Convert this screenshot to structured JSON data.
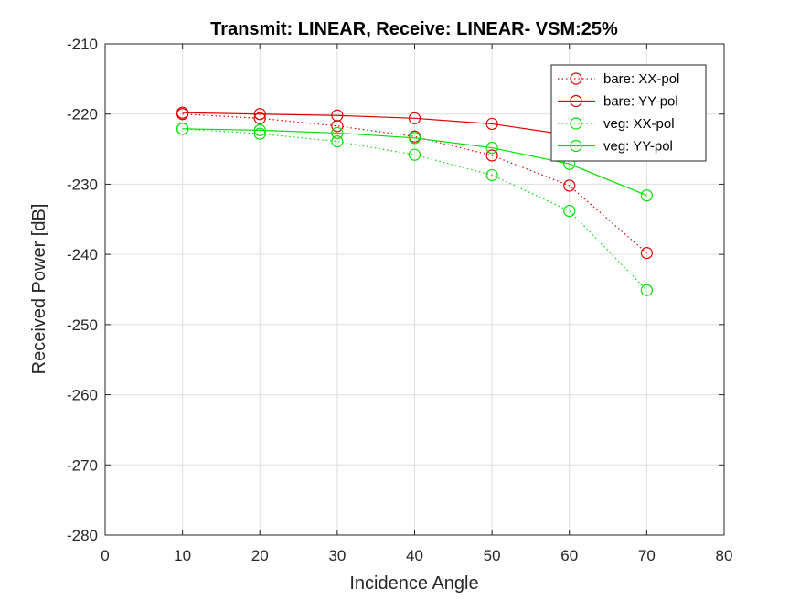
{
  "chart_data": {
    "type": "line",
    "title": "Transmit: LINEAR, Receive: LINEAR- VSM:25%",
    "xlabel": "Incidence Angle",
    "ylabel": "Received Power [dB]",
    "xlim": [
      0,
      80
    ],
    "ylim": [
      -280,
      -210
    ],
    "xticks": [
      0,
      10,
      20,
      30,
      40,
      50,
      60,
      70,
      80
    ],
    "yticks": [
      -280,
      -270,
      -260,
      -250,
      -240,
      -230,
      -220,
      -210
    ],
    "grid": true,
    "legend_position": "top-right",
    "x": [
      10,
      20,
      30,
      40,
      50,
      60,
      70
    ],
    "series": [
      {
        "name": "bare: XX-pol",
        "color": "#e00000",
        "linestyle": "dotted",
        "marker": "circle",
        "values": [
          -220.0,
          -220.6,
          -221.7,
          -223.2,
          -225.9,
          -230.2,
          -239.8
        ]
      },
      {
        "name": "bare: YY-pol",
        "color": "#e00000",
        "linestyle": "solid",
        "marker": "circle",
        "values": [
          -219.8,
          -220.0,
          -220.2,
          -220.6,
          -221.4,
          -223.0,
          -225.5
        ]
      },
      {
        "name": "veg: XX-pol",
        "color": "#00e000",
        "linestyle": "dotted",
        "marker": "circle",
        "values": [
          -222.1,
          -222.8,
          -223.9,
          -225.8,
          -228.7,
          -233.8,
          -245.1
        ]
      },
      {
        "name": "veg: YY-pol",
        "color": "#00e000",
        "linestyle": "solid",
        "marker": "circle",
        "values": [
          -222.1,
          -222.3,
          -222.7,
          -223.4,
          -224.8,
          -227.1,
          -231.6
        ]
      }
    ]
  }
}
